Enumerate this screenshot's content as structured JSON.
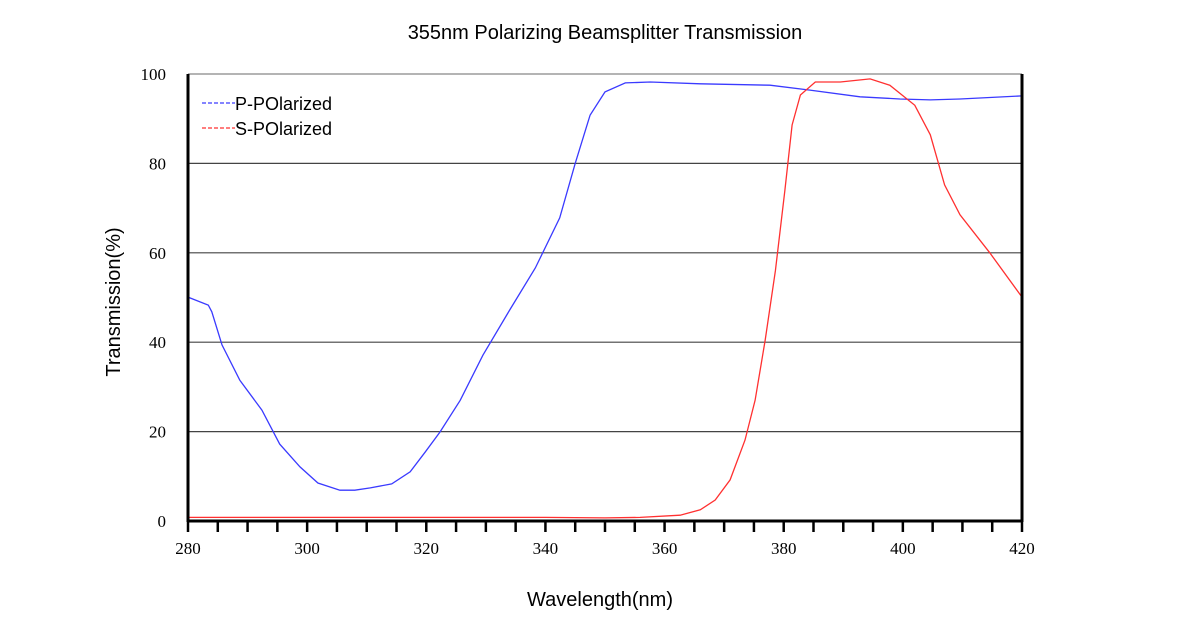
{
  "chart_data": {
    "type": "line",
    "title": "355nm Polarizing Beamsplitter Transmission",
    "xlabel": "Wavelength(nm)",
    "ylabel": "Transmission(%)",
    "xlim": [
      280,
      420
    ],
    "ylim": [
      0,
      100
    ],
    "xticks": [
      280,
      300,
      320,
      340,
      360,
      380,
      400,
      420
    ],
    "xminor_step": 5,
    "yticks": [
      0,
      20,
      40,
      60,
      80,
      100
    ],
    "grid": "horizontal",
    "legend_position": "top-left",
    "series": [
      {
        "name": "P-POlarized",
        "color": "#3a3aff",
        "x": [
          280,
          283.4,
          284,
          285.7,
          288.7,
          292.4,
          295.4,
          298.8,
          301.8,
          305.5,
          308,
          310.6,
          314.2,
          317.3,
          319.8,
          322.3,
          325.7,
          329.5,
          334,
          338.3,
          342.4,
          345,
          347.5,
          350,
          353.4,
          357.6,
          366,
          377.7,
          384.4,
          392.8,
          399.5,
          404.6,
          409.6,
          420
        ],
        "y": [
          50.1,
          48.3,
          46.8,
          39.4,
          31.5,
          24.8,
          17.2,
          12.1,
          8.5,
          6.9,
          6.9,
          7.4,
          8.3,
          11,
          15.4,
          19.9,
          27,
          37.1,
          47.2,
          56.6,
          67.8,
          80,
          90.8,
          96,
          98,
          98.2,
          97.8,
          97.5,
          96.4,
          94.9,
          94.4,
          94.2,
          94.4,
          95.1
        ]
      },
      {
        "name": "S-POlarized",
        "color": "#ff3030",
        "x": [
          280,
          300,
          320,
          340,
          350,
          355.9,
          362.6,
          366,
          368.5,
          371,
          373.5,
          375.2,
          376.9,
          378.6,
          380.2,
          381.4,
          382.8,
          385.3,
          389.5,
          394.5,
          397.8,
          402,
          404.6,
          407,
          409.6,
          414.6,
          420
        ],
        "y": [
          0.8,
          0.8,
          0.8,
          0.8,
          0.7,
          0.8,
          1.3,
          2.5,
          4.7,
          9.2,
          18.1,
          27,
          40.5,
          56,
          74,
          88.6,
          95.3,
          98.2,
          98.2,
          98.9,
          97.5,
          93,
          86.4,
          75.2,
          68.5,
          60,
          50.1
        ]
      }
    ]
  }
}
